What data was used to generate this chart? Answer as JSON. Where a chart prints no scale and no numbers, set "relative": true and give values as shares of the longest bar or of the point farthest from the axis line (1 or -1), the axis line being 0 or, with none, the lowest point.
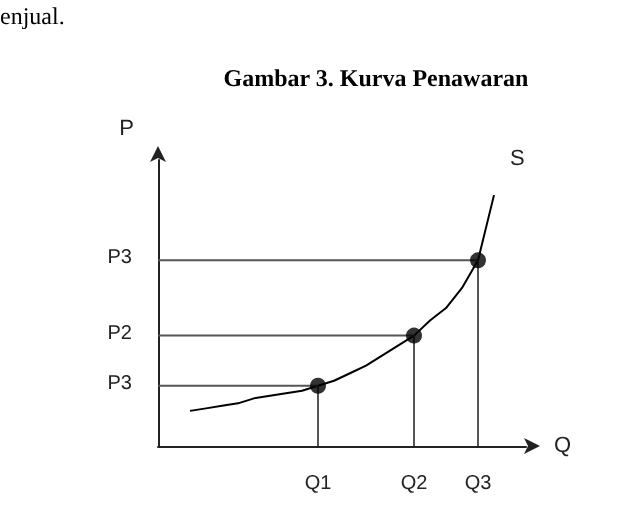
{
  "chart_data": {
    "type": "line",
    "title": "Gambar 3. Kurva Penawaran",
    "xlabel": "Q",
    "ylabel": "P",
    "relative": true,
    "categories": [
      null,
      null,
      null,
      null,
      null,
      null,
      null,
      null,
      null,
      null,
      "Q1",
      null,
      null,
      null,
      null,
      null,
      "Q2",
      null,
      null,
      null,
      "Q3",
      null,
      null,
      null
    ],
    "annotations": [
      "enjual."
    ],
    "line_style": "solid",
    "series": [
      {
        "name": "S",
        "color": "#000000",
        "marker": "none",
        "values": [
          null,
          null,
          0.14,
          0.15,
          0.16,
          0.17,
          0.19,
          0.2,
          0.21,
          0.22,
          0.24,
          0.26,
          0.29,
          0.32,
          0.36,
          0.4,
          0.44,
          0.5,
          0.55,
          0.63,
          0.74,
          1,
          null,
          null
        ]
      },
      {
        "type": "scatter",
        "color": "#000000",
        "marker": "circle",
        "x": [
          "Q1",
          "Q2",
          "Q3"
        ],
        "values": [
          0.24,
          0.44,
          0.74
        ]
      },
      {
        "name": "P3",
        "color": "#555555",
        "marker": "none",
        "values": [
          0.24,
          0.24,
          0.24,
          0.24,
          0.24,
          0.24,
          0.24,
          0.24,
          0.24,
          0.24,
          0.24,
          null,
          null,
          null,
          null,
          null,
          null,
          null,
          null,
          null,
          null,
          null,
          null,
          null
        ]
      },
      {
        "name": "P2",
        "color": "#555555",
        "marker": "none",
        "values": [
          0.44,
          0.44,
          0.44,
          0.44,
          0.44,
          0.44,
          0.44,
          0.44,
          0.44,
          0.44,
          0.44,
          0.44,
          0.44,
          0.44,
          0.44,
          0.44,
          0.44,
          null,
          null,
          null,
          null,
          null,
          null,
          null
        ]
      },
      {
        "name": "P3",
        "color": "#555555",
        "marker": "none",
        "values": [
          0.74,
          0.74,
          0.74,
          0.74,
          0.74,
          0.74,
          0.74,
          0.74,
          0.74,
          0.74,
          0.74,
          0.74,
          0.74,
          0.74,
          0.74,
          0.74,
          0.74,
          0.74,
          0.74,
          0.74,
          0.74,
          null,
          null,
          null
        ]
      },
      {
        "color": "#555555",
        "marker": "none",
        "x": [
          "Q1",
          "Q1"
        ],
        "values": [
          0,
          0.24
        ]
      },
      {
        "color": "#555555",
        "marker": "none",
        "x": [
          "Q2",
          "Q2"
        ],
        "values": [
          0,
          0.44
        ]
      },
      {
        "color": "#555555",
        "marker": "none",
        "x": [
          "Q3",
          "Q3"
        ],
        "values": [
          0,
          0.74
        ]
      }
    ]
  }
}
